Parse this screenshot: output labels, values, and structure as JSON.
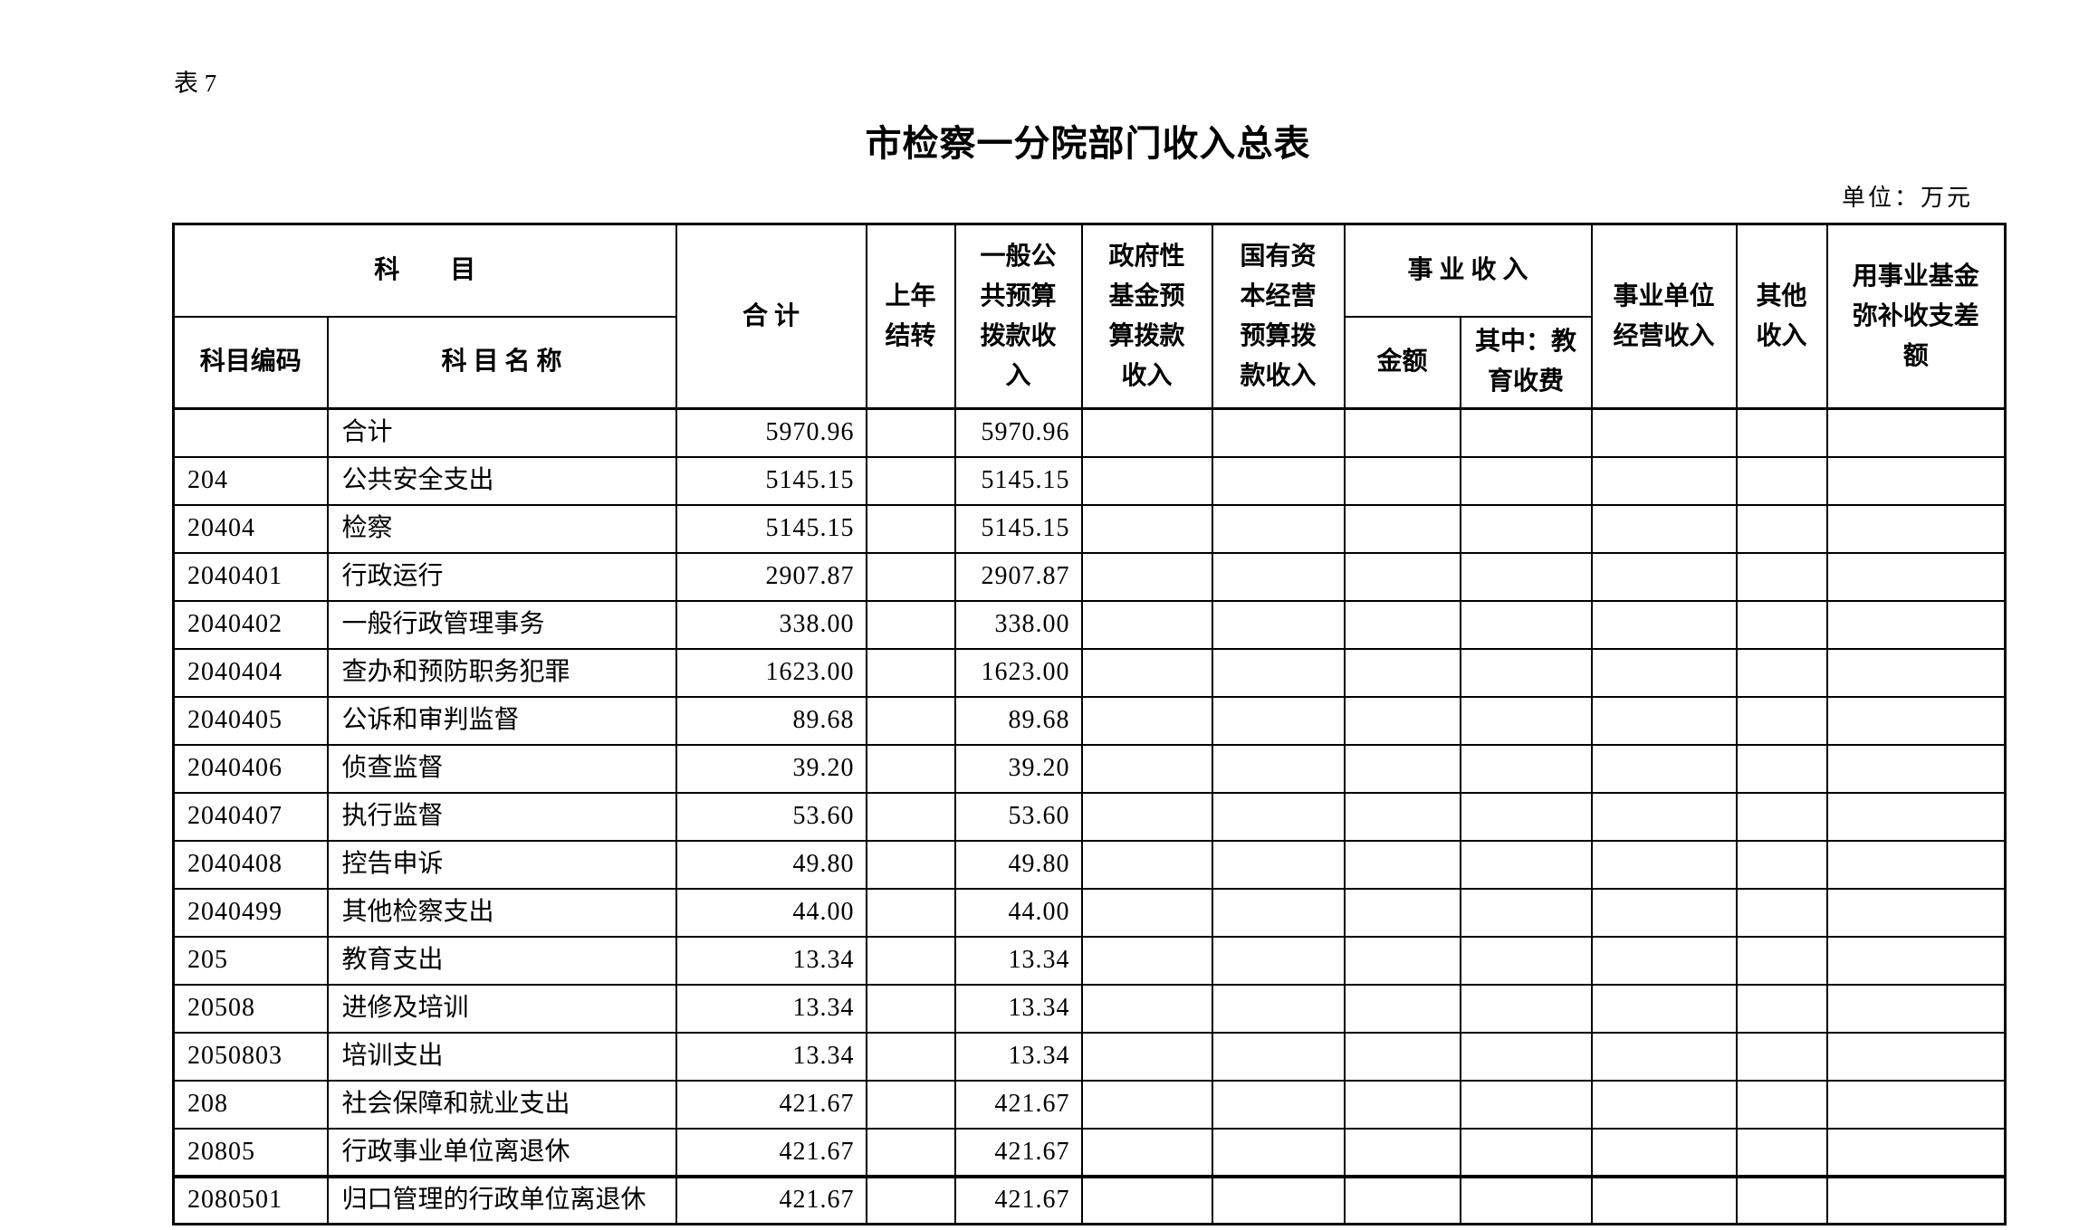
{
  "page": {
    "sheet_label": "表 7",
    "title": "市检察一分院部门收入总表",
    "unit_note": "单位：万元"
  },
  "table": {
    "header": {
      "subject_group": "科　　目",
      "subject_code": "科目编码",
      "subject_name": "科 目 名 称",
      "total": "合 计",
      "prev_year_carryover": "上年结转",
      "general_public_budget_income": "一般公共预算拨款收入",
      "gov_fund_budget_income": "政府性基金预算拨款收入",
      "state_capital_budget_income": "国有资本经营预算拨款收入",
      "business_income_group": "事 业 收 入",
      "business_income_amount": "金额",
      "business_income_incl_education_fees": "其中：教育收费",
      "business_unit_operating_income": "事业单位经营收入",
      "other_income": "其他收入",
      "fund_subsidy_balance": "用事业基金弥补收支差额"
    },
    "rows": [
      {
        "code": "",
        "name": "合计",
        "total": "5970.96",
        "prev_year": "",
        "general_budget": "5970.96",
        "gov_fund": "",
        "state_capital": "",
        "amount": "",
        "education_fees": "",
        "operating": "",
        "other": "",
        "fund_balance": ""
      },
      {
        "code": "204",
        "name": "公共安全支出",
        "total": "5145.15",
        "prev_year": "",
        "general_budget": "5145.15",
        "gov_fund": "",
        "state_capital": "",
        "amount": "",
        "education_fees": "",
        "operating": "",
        "other": "",
        "fund_balance": ""
      },
      {
        "code": "20404",
        "name": "检察",
        "total": "5145.15",
        "prev_year": "",
        "general_budget": "5145.15",
        "gov_fund": "",
        "state_capital": "",
        "amount": "",
        "education_fees": "",
        "operating": "",
        "other": "",
        "fund_balance": ""
      },
      {
        "code": "2040401",
        "name": "行政运行",
        "total": "2907.87",
        "prev_year": "",
        "general_budget": "2907.87",
        "gov_fund": "",
        "state_capital": "",
        "amount": "",
        "education_fees": "",
        "operating": "",
        "other": "",
        "fund_balance": ""
      },
      {
        "code": "2040402",
        "name": "一般行政管理事务",
        "total": "338.00",
        "prev_year": "",
        "general_budget": "338.00",
        "gov_fund": "",
        "state_capital": "",
        "amount": "",
        "education_fees": "",
        "operating": "",
        "other": "",
        "fund_balance": ""
      },
      {
        "code": "2040404",
        "name": "查办和预防职务犯罪",
        "total": "1623.00",
        "prev_year": "",
        "general_budget": "1623.00",
        "gov_fund": "",
        "state_capital": "",
        "amount": "",
        "education_fees": "",
        "operating": "",
        "other": "",
        "fund_balance": ""
      },
      {
        "code": "2040405",
        "name": "公诉和审判监督",
        "total": "89.68",
        "prev_year": "",
        "general_budget": "89.68",
        "gov_fund": "",
        "state_capital": "",
        "amount": "",
        "education_fees": "",
        "operating": "",
        "other": "",
        "fund_balance": ""
      },
      {
        "code": "2040406",
        "name": "侦查监督",
        "total": "39.20",
        "prev_year": "",
        "general_budget": "39.20",
        "gov_fund": "",
        "state_capital": "",
        "amount": "",
        "education_fees": "",
        "operating": "",
        "other": "",
        "fund_balance": ""
      },
      {
        "code": "2040407",
        "name": "执行监督",
        "total": "53.60",
        "prev_year": "",
        "general_budget": "53.60",
        "gov_fund": "",
        "state_capital": "",
        "amount": "",
        "education_fees": "",
        "operating": "",
        "other": "",
        "fund_balance": ""
      },
      {
        "code": "2040408",
        "name": "控告申诉",
        "total": "49.80",
        "prev_year": "",
        "general_budget": "49.80",
        "gov_fund": "",
        "state_capital": "",
        "amount": "",
        "education_fees": "",
        "operating": "",
        "other": "",
        "fund_balance": ""
      },
      {
        "code": "2040499",
        "name": "其他检察支出",
        "total": "44.00",
        "prev_year": "",
        "general_budget": "44.00",
        "gov_fund": "",
        "state_capital": "",
        "amount": "",
        "education_fees": "",
        "operating": "",
        "other": "",
        "fund_balance": ""
      },
      {
        "code": "205",
        "name": "教育支出",
        "total": "13.34",
        "prev_year": "",
        "general_budget": "13.34",
        "gov_fund": "",
        "state_capital": "",
        "amount": "",
        "education_fees": "",
        "operating": "",
        "other": "",
        "fund_balance": ""
      },
      {
        "code": "20508",
        "name": "进修及培训",
        "total": "13.34",
        "prev_year": "",
        "general_budget": "13.34",
        "gov_fund": "",
        "state_capital": "",
        "amount": "",
        "education_fees": "",
        "operating": "",
        "other": "",
        "fund_balance": ""
      },
      {
        "code": "2050803",
        "name": "培训支出",
        "total": "13.34",
        "prev_year": "",
        "general_budget": "13.34",
        "gov_fund": "",
        "state_capital": "",
        "amount": "",
        "education_fees": "",
        "operating": "",
        "other": "",
        "fund_balance": ""
      },
      {
        "code": "208",
        "name": "社会保障和就业支出",
        "total": "421.67",
        "prev_year": "",
        "general_budget": "421.67",
        "gov_fund": "",
        "state_capital": "",
        "amount": "",
        "education_fees": "",
        "operating": "",
        "other": "",
        "fund_balance": ""
      },
      {
        "code": "20805",
        "name": "行政事业单位离退休",
        "total": "421.67",
        "prev_year": "",
        "general_budget": "421.67",
        "gov_fund": "",
        "state_capital": "",
        "amount": "",
        "education_fees": "",
        "operating": "",
        "other": "",
        "fund_balance": ""
      },
      {
        "code": "2080501",
        "name": "归口管理的行政单位离退休",
        "total": "421.67",
        "prev_year": "",
        "general_budget": "421.67",
        "gov_fund": "",
        "state_capital": "",
        "amount": "",
        "education_fees": "",
        "operating": "",
        "other": "",
        "fund_balance": ""
      }
    ]
  }
}
